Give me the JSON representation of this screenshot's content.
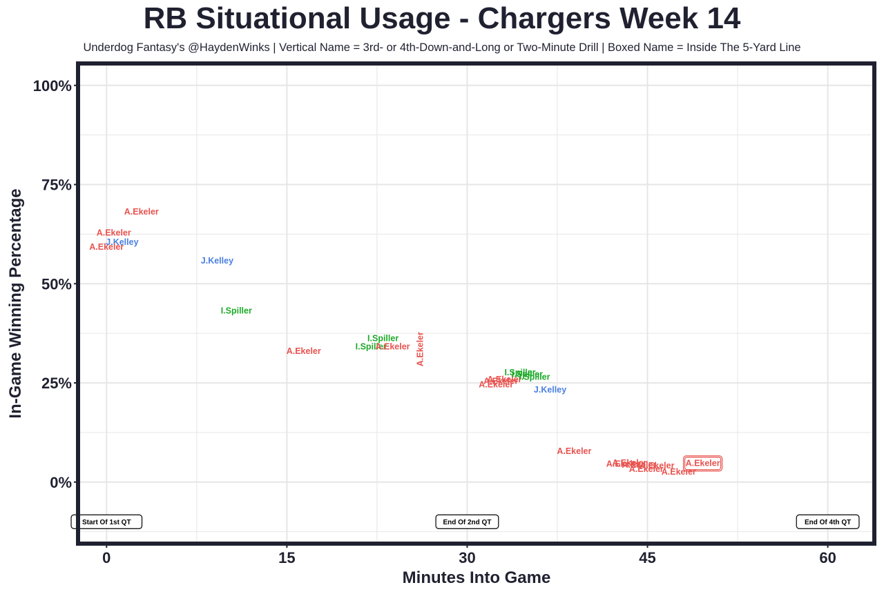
{
  "colors": {
    "ekeler": "#e8534f",
    "kelley": "#4a7fe0",
    "spiller": "#1faa2a",
    "panel_border": "#1f2130",
    "grid": "#e6e6e6"
  },
  "chart_data": {
    "type": "scatter",
    "title": "RB Situational Usage - Chargers Week 14",
    "subtitle": "Underdog Fantasy's @HaydenWinks | Vertical Name = 3rd- or 4th-Down-and-Long or Two-Minute Drill | Boxed Name = Inside The 5-Yard Line",
    "xlabel": "Minutes Into Game",
    "ylabel": "In-Game Winning Percentage",
    "xlim": [
      -2.2,
      63.7
    ],
    "ylim": [
      -15,
      105
    ],
    "x_ticks": [
      0,
      15,
      30,
      45,
      60
    ],
    "x_tick_labels": [
      "0",
      "15",
      "30",
      "45",
      "60"
    ],
    "y_ticks": [
      0,
      25,
      50,
      75,
      100
    ],
    "y_tick_labels": [
      "0%",
      "25%",
      "50%",
      "75%",
      "100%"
    ],
    "grid": true,
    "points": [
      {
        "label": "A.Ekeler",
        "player": "ekeler",
        "x": 2.9,
        "y": 68.1
      },
      {
        "label": "A.Ekeler",
        "player": "ekeler",
        "x": 0.6,
        "y": 62.8
      },
      {
        "label": "J.Kelley",
        "player": "kelley",
        "x": 1.3,
        "y": 60.5
      },
      {
        "label": "A.Ekeler",
        "player": "ekeler",
        "x": 0.0,
        "y": 59.3
      },
      {
        "label": "J.Kelley",
        "player": "kelley",
        "x": 9.2,
        "y": 55.8
      },
      {
        "label": "I.Spiller",
        "player": "spiller",
        "x": 10.8,
        "y": 43.2
      },
      {
        "label": "A.Ekeler",
        "player": "ekeler",
        "x": 16.4,
        "y": 33.0
      },
      {
        "label": "I.Spiller",
        "player": "spiller",
        "x": 23.0,
        "y": 36.2
      },
      {
        "label": "I.Spiller",
        "player": "spiller",
        "x": 22.0,
        "y": 34.1
      },
      {
        "label": "A.Ekeler",
        "player": "ekeler",
        "x": 23.8,
        "y": 34.1
      },
      {
        "label": "A.Ekeler",
        "player": "ekeler",
        "x": 26.1,
        "y": 33.5,
        "vertical": true
      },
      {
        "label": "A.Ekeler",
        "player": "ekeler",
        "x": 33.1,
        "y": 25.9
      },
      {
        "label": "A.Ekeler",
        "player": "ekeler",
        "x": 32.8,
        "y": 25.4
      },
      {
        "label": "A.Ekeler",
        "player": "ekeler",
        "x": 32.4,
        "y": 24.6
      },
      {
        "label": "I.Spiller",
        "player": "spiller",
        "x": 34.4,
        "y": 27.6
      },
      {
        "label": "I.Spiller",
        "player": "spiller",
        "x": 35.0,
        "y": 27.2
      },
      {
        "label": "I.Spiller",
        "player": "spiller",
        "x": 35.6,
        "y": 26.5
      },
      {
        "label": "J.Kelley",
        "player": "kelley",
        "x": 36.9,
        "y": 23.3
      },
      {
        "label": "A.Ekeler",
        "player": "ekeler",
        "x": 38.9,
        "y": 7.8
      },
      {
        "label": "A.Ekeler",
        "player": "ekeler",
        "x": 43.0,
        "y": 4.6
      },
      {
        "label": "A.Ekeler",
        "player": "ekeler",
        "x": 43.5,
        "y": 4.8
      },
      {
        "label": "A.Ekeler",
        "player": "ekeler",
        "x": 44.3,
        "y": 4.3
      },
      {
        "label": "A.Ekeler",
        "player": "ekeler",
        "x": 45.8,
        "y": 4.1
      },
      {
        "label": "A.Ekeler",
        "player": "ekeler",
        "x": 44.9,
        "y": 3.3
      },
      {
        "label": "A.Ekeler",
        "player": "ekeler",
        "x": 47.6,
        "y": 2.6
      },
      {
        "label": "A.Ekeler",
        "player": "ekeler",
        "x": 49.6,
        "y": 4.7,
        "boxed": true
      }
    ],
    "annotations": [
      {
        "text": "Start Of 1st QT",
        "x": 0,
        "y": -10
      },
      {
        "text": "End Of 2nd QT",
        "x": 30,
        "y": -10
      },
      {
        "text": "End Of 4th QT",
        "x": 60,
        "y": -10
      }
    ]
  }
}
